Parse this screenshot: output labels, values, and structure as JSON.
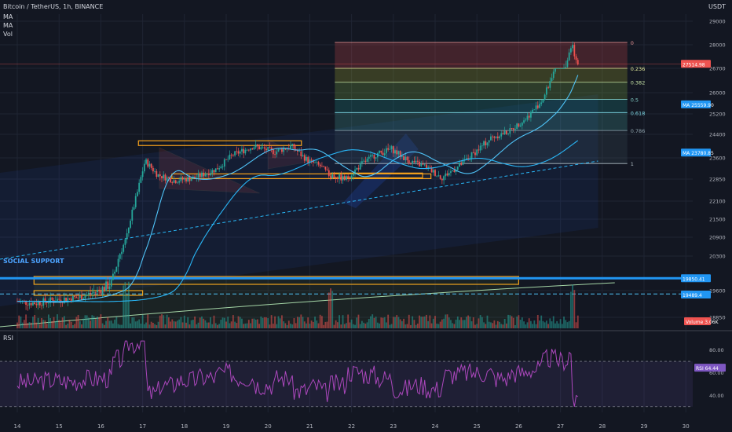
{
  "header": {
    "symbol": "Bitcoin / TetherUS, 1h, BINANCE",
    "indicators": [
      "MA",
      "MA",
      "Vol"
    ]
  },
  "currency": "USDT",
  "rsi_label": "RSI",
  "social_support_label": "SOCIAL SUPPORT",
  "price_badges": [
    {
      "label": "27514.98",
      "value": 27514.98,
      "color": "#ef5350"
    },
    {
      "label": "MA 25559.90",
      "value": 25559.9,
      "color": "#2196f3"
    },
    {
      "label": "MA 23780.85",
      "value": 23780.85,
      "color": "#2196f3"
    },
    {
      "label": "19850.41",
      "value": 19850.41,
      "color": "#2196f3"
    },
    {
      "label": "19489.4",
      "value": 19489.4,
      "color": "#2196f3"
    }
  ],
  "volume_badge": {
    "label": "Volume 3.06K",
    "color": "#ef5350"
  },
  "rsi_badge": {
    "label": "RSI 64.44",
    "value": 64.44,
    "color": "#7e57c2"
  },
  "colors": {
    "background": "#131722",
    "up": "#26a69a",
    "down": "#ef5350",
    "ma_fast": "#4fc3f7",
    "ma_slow": "#29b6f6",
    "support": "#2196f3",
    "box": "#f7a21b",
    "rsi": "#ab47bc"
  },
  "chart_data": [
    {
      "type": "candlestick",
      "title": "Bitcoin / TetherUS, 1h, BINANCE",
      "x_ticks": [
        "14",
        "15",
        "16",
        "17",
        "18",
        "19",
        "20",
        "21",
        "22",
        "23",
        "24",
        "25",
        "26",
        "27",
        "28",
        "29",
        "30"
      ],
      "y_ticks": [
        18850,
        19600,
        20300,
        20900,
        21500,
        22100,
        22850,
        23600,
        24400,
        25200,
        26000,
        26700,
        27400,
        28000,
        29000
      ],
      "ylim": [
        18600,
        29000
      ],
      "price_path": [
        [
          14.0,
          19300
        ],
        [
          14.5,
          19250
        ],
        [
          15.0,
          19350
        ],
        [
          15.5,
          19400
        ],
        [
          16.0,
          19600
        ],
        [
          16.3,
          19750
        ],
        [
          16.6,
          20700
        ],
        [
          16.9,
          22300
        ],
        [
          17.1,
          23500
        ],
        [
          17.4,
          23000
        ],
        [
          17.8,
          22800
        ],
        [
          18.3,
          22900
        ],
        [
          18.8,
          23200
        ],
        [
          19.2,
          23700
        ],
        [
          19.7,
          24000
        ],
        [
          20.2,
          23800
        ],
        [
          20.6,
          24000
        ],
        [
          21.0,
          23500
        ],
        [
          21.3,
          23300
        ],
        [
          21.5,
          23000
        ],
        [
          21.9,
          22850
        ],
        [
          22.3,
          23400
        ],
        [
          22.6,
          23700
        ],
        [
          23.0,
          23900
        ],
        [
          23.4,
          23500
        ],
        [
          23.8,
          23300
        ],
        [
          24.2,
          22900
        ],
        [
          24.6,
          23300
        ],
        [
          25.0,
          23800
        ],
        [
          25.4,
          24300
        ],
        [
          25.8,
          24500
        ],
        [
          26.2,
          25000
        ],
        [
          26.6,
          25700
        ],
        [
          26.9,
          26700
        ],
        [
          27.2,
          27600
        ],
        [
          27.3,
          28000
        ],
        [
          27.45,
          27500
        ]
      ],
      "fibonacci": {
        "levels": [
          {
            "ratio": "0",
            "price": 28100
          },
          {
            "ratio": "0.236",
            "price": 26950
          },
          {
            "ratio": "0.382",
            "price": 26300
          },
          {
            "ratio": "0.5",
            "price": 25750
          },
          {
            "ratio": "0.618",
            "price": 25250
          },
          {
            "ratio": "0.786",
            "price": 24550
          },
          {
            "ratio": "1",
            "price": 23400
          }
        ]
      },
      "social_support_price": 19850.41
    },
    {
      "type": "line",
      "title": "RSI",
      "y_ticks": [
        40.0,
        60.0,
        80.0
      ],
      "ylim": [
        25,
        95
      ],
      "bands": [
        30,
        70
      ],
      "last_value": 64.44
    }
  ]
}
